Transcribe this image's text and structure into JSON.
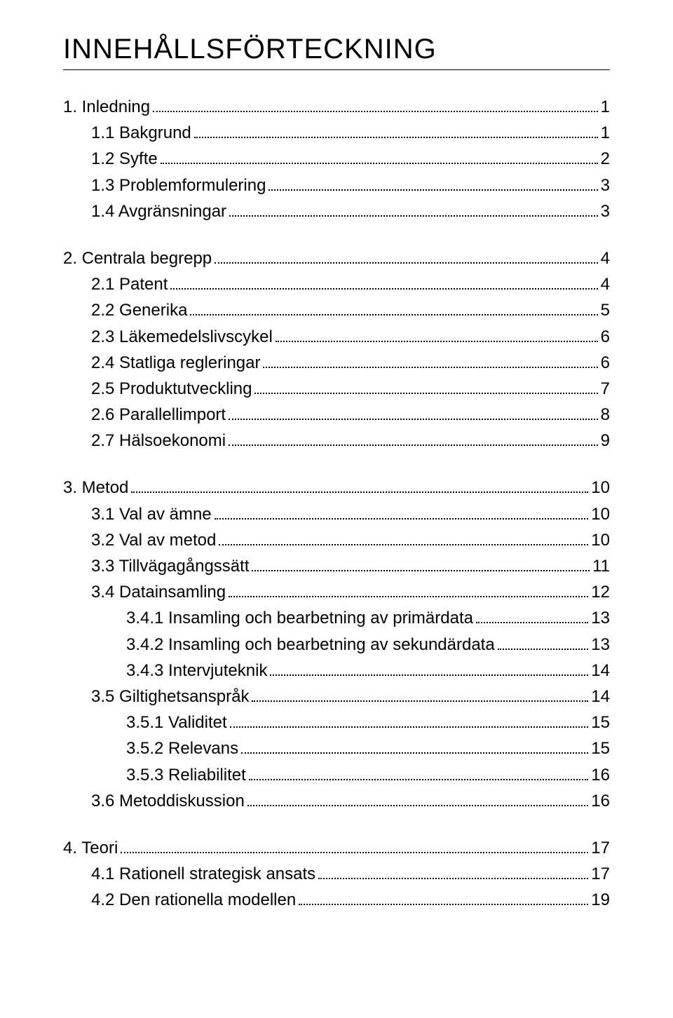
{
  "heading": "INNEHÅLLSFÖRTECKNING",
  "entries": [
    {
      "label": "1. Inledning",
      "page": "1",
      "indent": 0
    },
    {
      "label": "1.1 Bakgrund",
      "page": "1",
      "indent": 1
    },
    {
      "label": "1.2 Syfte",
      "page": "2",
      "indent": 1
    },
    {
      "label": "1.3 Problemformulering",
      "page": "3",
      "indent": 1
    },
    {
      "label": "1.4 Avgränsningar",
      "page": "3",
      "indent": 1
    },
    {
      "gap": true
    },
    {
      "label": "2. Centrala begrepp",
      "page": "4",
      "indent": 0
    },
    {
      "label": "2.1 Patent",
      "page": "4",
      "indent": 1
    },
    {
      "label": "2.2 Generika",
      "page": "5",
      "indent": 1
    },
    {
      "label": "2.3 Läkemedelslivscykel",
      "page": "6",
      "indent": 1
    },
    {
      "label": "2.4 Statliga regleringar",
      "page": "6",
      "indent": 1
    },
    {
      "label": "2.5 Produktutveckling",
      "page": "7",
      "indent": 1
    },
    {
      "label": "2.6 Parallellimport",
      "page": "8",
      "indent": 1
    },
    {
      "label": "2.7 Hälsoekonomi",
      "page": "9",
      "indent": 1
    },
    {
      "gap": true
    },
    {
      "label": "3. Metod",
      "page": "10",
      "indent": 0
    },
    {
      "label": "3.1 Val av ämne",
      "page": "10",
      "indent": 1
    },
    {
      "label": "3.2 Val av metod",
      "page": "10",
      "indent": 1
    },
    {
      "label": "3.3 Tillvägagångssätt",
      "page": "11",
      "indent": 1
    },
    {
      "label": "3.4 Datainsamling",
      "page": "12",
      "indent": 1
    },
    {
      "label": "3.4.1 Insamling och bearbetning av primärdata",
      "page": "13",
      "indent": 2
    },
    {
      "label": "3.4.2 Insamling och bearbetning av sekundärdata",
      "page": "13",
      "indent": 2
    },
    {
      "label": "3.4.3 Intervjuteknik",
      "page": "14",
      "indent": 2
    },
    {
      "label": "3.5 Giltighetsanspråk",
      "page": "14",
      "indent": 1
    },
    {
      "label": "3.5.1 Validitet",
      "page": "15",
      "indent": 2
    },
    {
      "label": "3.5.2 Relevans",
      "page": "15",
      "indent": 2
    },
    {
      "label": "3.5.3 Reliabilitet",
      "page": "16",
      "indent": 2
    },
    {
      "label": "3.6 Metoddiskussion",
      "page": "16",
      "indent": 1
    },
    {
      "gap": true
    },
    {
      "label": "4. Teori",
      "page": "17",
      "indent": 0
    },
    {
      "label": "4.1 Rationell strategisk ansats",
      "page": "17",
      "indent": 1
    },
    {
      "label": "4.2 Den rationella modellen",
      "page": "19",
      "indent": 1
    }
  ]
}
